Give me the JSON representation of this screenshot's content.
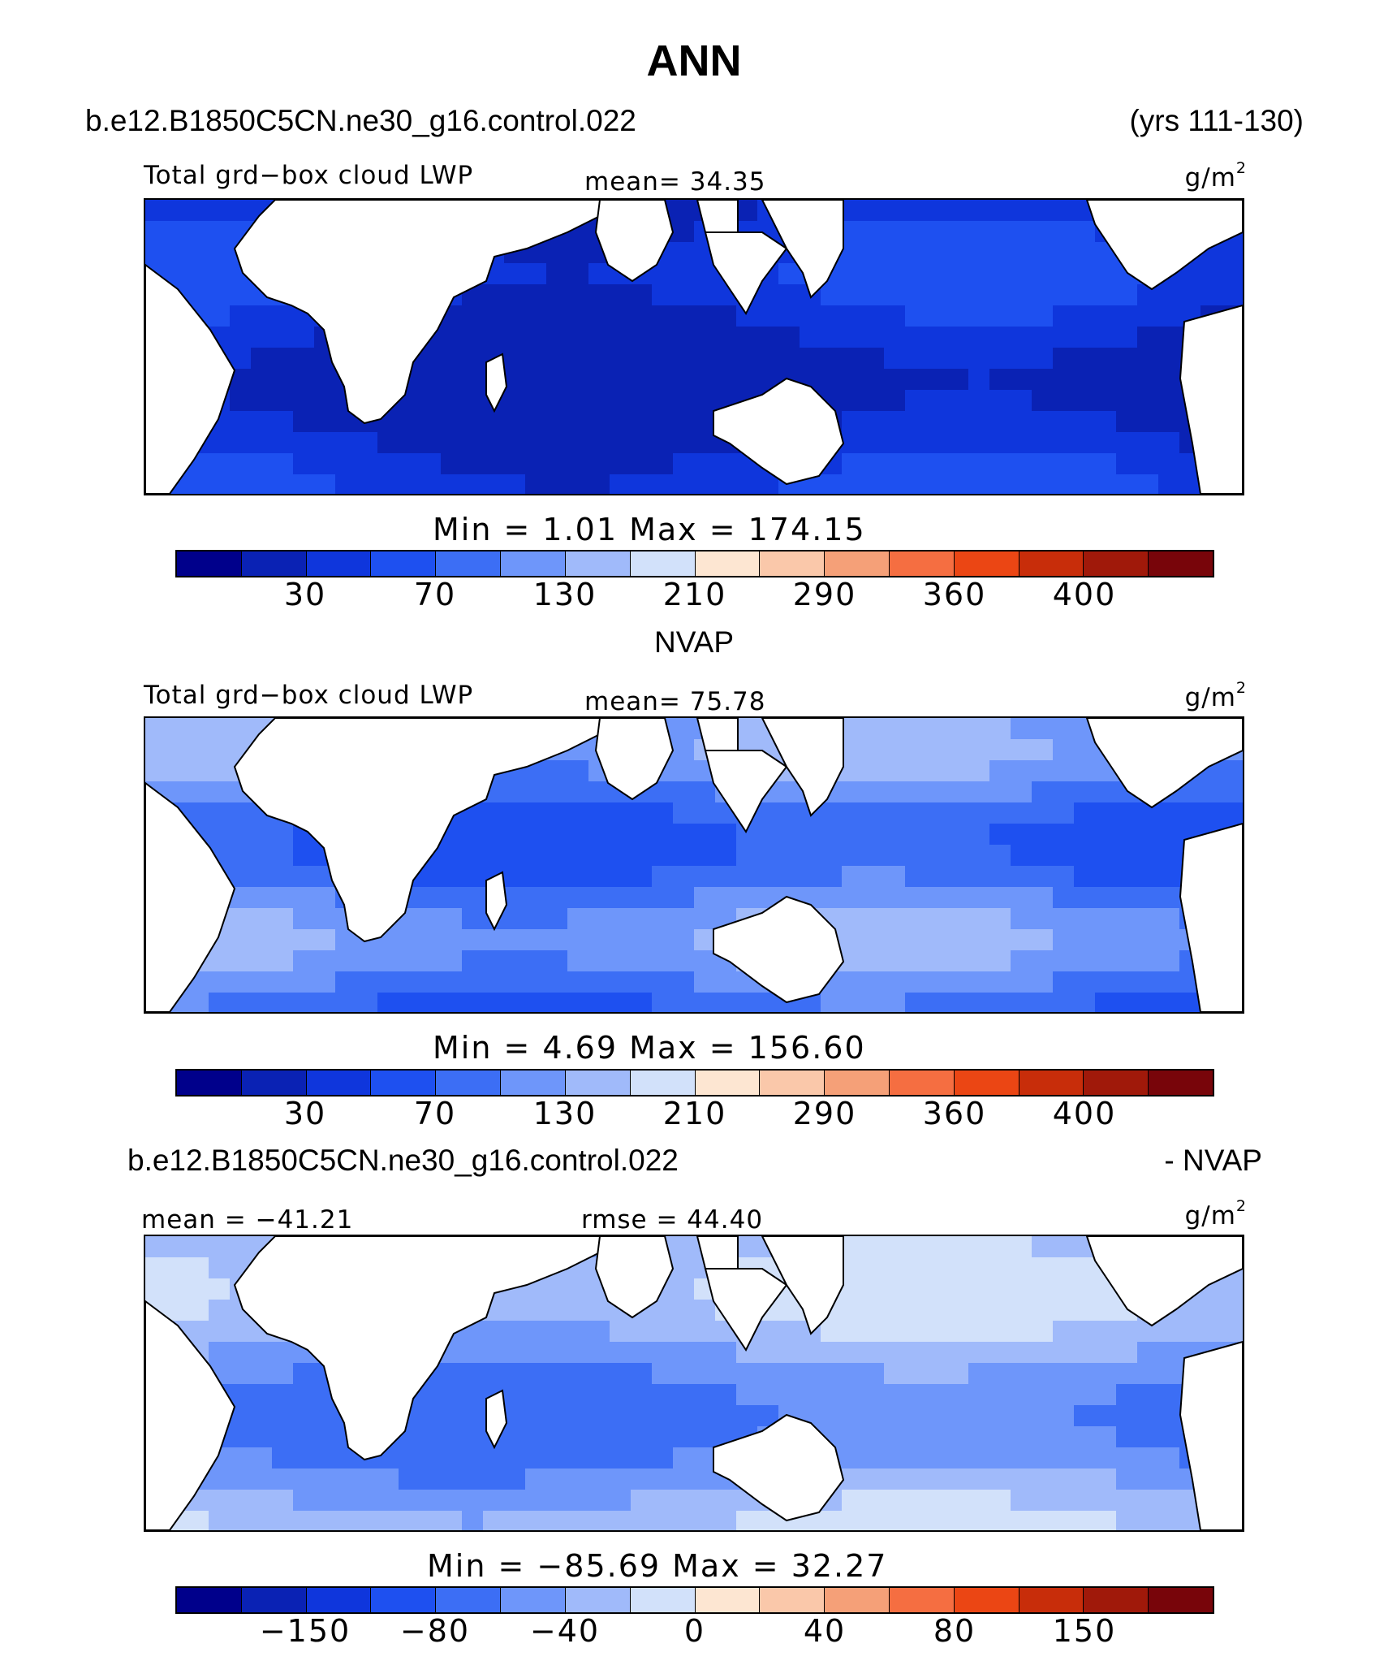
{
  "header": {
    "title": "ANN",
    "case_name": "b.e12.B1850C5CN.ne30_g16.control.022",
    "years": "(yrs 111-130)"
  },
  "panels": [
    {
      "label": "Total grd−box cloud LWP",
      "stat": "mean=  34.35",
      "units": "g/m",
      "units_sup": "2",
      "minmax": "Min =    1.01 Max = 174.15",
      "ticks": [
        "30",
        "70",
        "130",
        "210",
        "290",
        "360",
        "400"
      ],
      "field": "model"
    },
    {
      "heading": "NVAP",
      "label": "Total grd−box cloud LWP",
      "stat": "mean=  75.78",
      "units": "g/m",
      "units_sup": "2",
      "minmax": "Min =    4.69 Max = 156.60",
      "ticks": [
        "30",
        "70",
        "130",
        "210",
        "290",
        "360",
        "400"
      ],
      "field": "obs"
    },
    {
      "heading_left": "b.e12.B1850C5CN.ne30_g16.control.022",
      "heading_right": "- NVAP",
      "label": "mean = −41.21",
      "stat": "rmse =  44.40",
      "units": "g/m",
      "units_sup": "2",
      "minmax": "Min = −85.69 Max =  32.27",
      "ticks": [
        "−150",
        "−80",
        "−40",
        "0",
        "40",
        "80",
        "150"
      ],
      "field": "diff"
    }
  ],
  "colors": {
    "palette": [
      "#00008b",
      "#0a22b4",
      "#0f36dc",
      "#1e50f0",
      "#3c6ef5",
      "#6e96fa",
      "#a0bafa",
      "#d2e1fa",
      "#fde6d2",
      "#fac8aa",
      "#f5a078",
      "#f56e41",
      "#eb4614",
      "#c82d0a",
      "#a0190a",
      "#78050a"
    ],
    "land": "#ffffff",
    "coast": "#000000"
  }
}
